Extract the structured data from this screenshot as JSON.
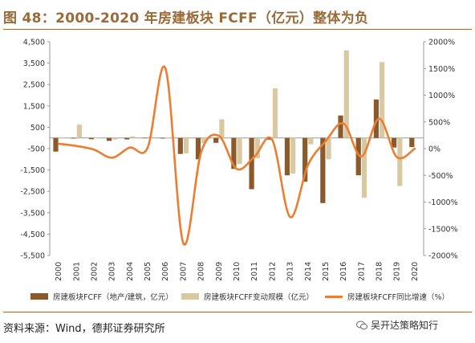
{
  "title": "图 48：2000-2020 年房建板块 FCFF（亿元）整体为负",
  "source": "资料来源：Wind，德邦证券研究所",
  "watermark": "吴开达策略知行",
  "colors": {
    "title": "#9a6a37",
    "fcff": "#8b5a2b",
    "change": "#d9c9a3",
    "yoy": "#ed7d31"
  },
  "chart_data": {
    "type": "bar",
    "categories": [
      "2000",
      "2001",
      "2002",
      "2003",
      "2004",
      "2005",
      "2006",
      "2007",
      "2008",
      "2009",
      "2010",
      "2011",
      "2012",
      "2013",
      "2014",
      "2015",
      "2016",
      "2017",
      "2018",
      "2019",
      "2020"
    ],
    "series": [
      {
        "name": "房建板块FCFF（地产/建筑，亿元）",
        "type": "bar",
        "axis": "left",
        "values": [
          -640,
          -30,
          -60,
          -140,
          -70,
          -20,
          -30,
          -750,
          -1000,
          -230,
          -1450,
          -2400,
          -80,
          -1750,
          -2050,
          -3050,
          1050,
          -1750,
          1800,
          -450,
          -430
        ]
      },
      {
        "name": "房建板块FCFF变动规模（亿元）",
        "type": "bar",
        "axis": "left",
        "values": [
          0,
          620,
          -30,
          -80,
          70,
          50,
          -10,
          -720,
          -250,
          870,
          -1220,
          -950,
          2320,
          -1670,
          -300,
          -1000,
          4100,
          -2800,
          3550,
          -2250,
          20
        ]
      },
      {
        "name": "房建板块FCFF同比增速（%）",
        "type": "line",
        "axis": "right",
        "values": [
          90,
          50,
          -20,
          -170,
          20,
          20,
          1500,
          -1770,
          -70,
          240,
          -380,
          -150,
          160,
          -1280,
          -310,
          140,
          470,
          -150,
          560,
          -160,
          0
        ]
      }
    ],
    "y_left": {
      "ticks": [
        "4,500",
        "3,500",
        "2,500",
        "1,500",
        "500",
        "-500",
        "-1,500",
        "-2,500",
        "-3,500",
        "-4,500",
        "-5,500"
      ],
      "range": [
        -5500,
        4500
      ]
    },
    "y_right": {
      "ticks": [
        "2000%",
        "1500%",
        "1000%",
        "500%",
        "0%",
        "-500%",
        "-1000%",
        "-1500%",
        "-2000%"
      ],
      "range": [
        -2000,
        2000
      ]
    },
    "legend_position": "bottom",
    "grid": false
  }
}
